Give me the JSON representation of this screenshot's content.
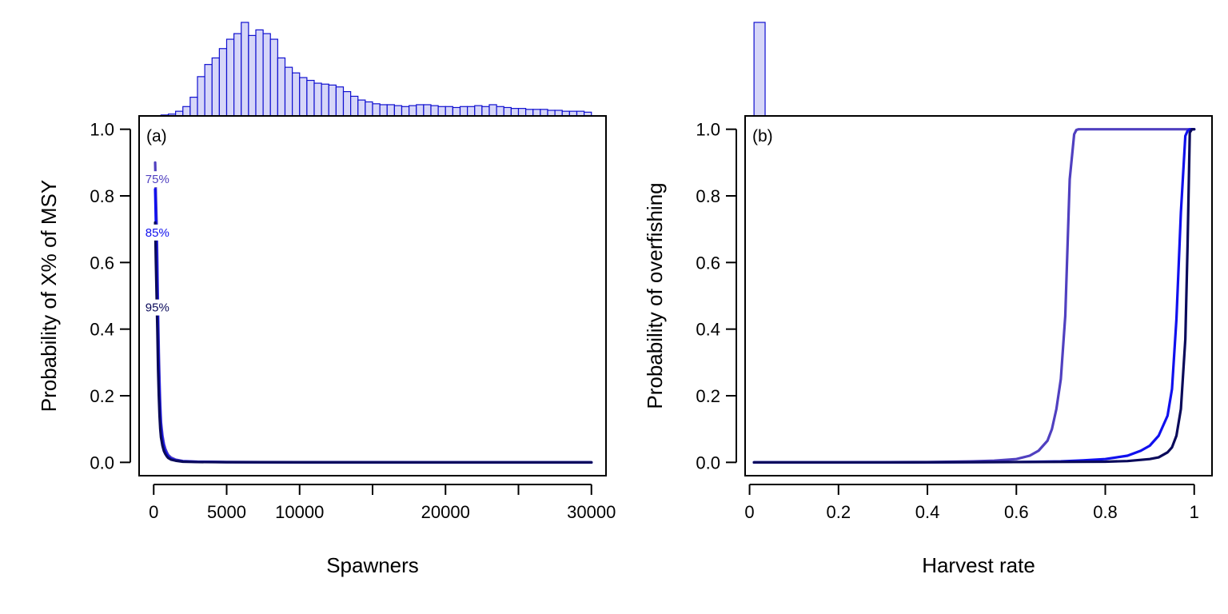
{
  "chart_data": [
    {
      "panel": "(a)",
      "type": "line",
      "xlabel": "Spawners",
      "ylabel": "Probability of X% of MSY",
      "xlim": [
        -1000,
        31000
      ],
      "ylim": [
        -0.04,
        1.04
      ],
      "xticks": [
        0,
        5000,
        10000,
        15000,
        20000,
        25000,
        30000
      ],
      "xtick_labels": [
        "0",
        "5000",
        "10000",
        "",
        "20000",
        "",
        "30000"
      ],
      "yticks": [
        0.0,
        0.2,
        0.4,
        0.6,
        0.8,
        1.0
      ],
      "ytick_labels": [
        "0.0",
        "0.2",
        "0.4",
        "0.6",
        "0.8",
        "1.0"
      ],
      "grid": false,
      "series": [
        {
          "name": "75%",
          "color": "#5040c0",
          "x": [
            100,
            150,
            200,
            250,
            300,
            350,
            400,
            450,
            500,
            600,
            700,
            800,
            900,
            1000,
            1200,
            1500,
            2000,
            3000,
            5000,
            10000,
            20000,
            30000
          ],
          "y": [
            0.9,
            0.8,
            0.72,
            0.6,
            0.45,
            0.33,
            0.24,
            0.17,
            0.12,
            0.08,
            0.055,
            0.04,
            0.03,
            0.022,
            0.014,
            0.008,
            0.004,
            0.002,
            0.001,
            0.0005,
            0.0,
            0.0
          ]
        },
        {
          "name": "85%",
          "color": "#1010ee",
          "x": [
            100,
            150,
            200,
            250,
            300,
            350,
            400,
            450,
            500,
            600,
            700,
            800,
            900,
            1000,
            1200,
            1500,
            2000,
            3000,
            5000,
            10000,
            20000,
            30000
          ],
          "y": [
            0.82,
            0.72,
            0.62,
            0.5,
            0.37,
            0.27,
            0.19,
            0.14,
            0.1,
            0.065,
            0.045,
            0.032,
            0.024,
            0.017,
            0.01,
            0.006,
            0.003,
            0.0015,
            0.0008,
            0.0003,
            0.0,
            0.0
          ]
        },
        {
          "name": "95%",
          "color": "#0a0a5a",
          "x": [
            100,
            150,
            200,
            250,
            300,
            350,
            400,
            450,
            500,
            600,
            700,
            800,
            900,
            1000,
            1200,
            1500,
            2000,
            3000,
            5000,
            10000,
            20000,
            30000
          ],
          "y": [
            0.72,
            0.6,
            0.5,
            0.4,
            0.28,
            0.2,
            0.14,
            0.1,
            0.075,
            0.05,
            0.034,
            0.025,
            0.018,
            0.013,
            0.008,
            0.005,
            0.002,
            0.001,
            0.0005,
            0.0002,
            0.0,
            0.0
          ]
        }
      ],
      "curve_labels": [
        {
          "text": "75%",
          "x": 250,
          "y": 0.85,
          "color": "#5040c0"
        },
        {
          "text": "85%",
          "x": 250,
          "y": 0.69,
          "color": "#1010ee"
        },
        {
          "text": "95%",
          "x": 250,
          "y": 0.465,
          "color": "#0a0a5a"
        }
      ],
      "marginal_histogram": {
        "bin_start": 0,
        "bin_width": 500,
        "relative_heights": [
          0.0,
          0.01,
          0.02,
          0.05,
          0.1,
          0.2,
          0.42,
          0.55,
          0.62,
          0.72,
          0.82,
          0.88,
          1.0,
          0.86,
          0.92,
          0.88,
          0.82,
          0.62,
          0.52,
          0.46,
          0.41,
          0.38,
          0.35,
          0.34,
          0.33,
          0.31,
          0.26,
          0.21,
          0.17,
          0.15,
          0.13,
          0.12,
          0.12,
          0.11,
          0.1,
          0.11,
          0.12,
          0.12,
          0.11,
          0.1,
          0.1,
          0.09,
          0.1,
          0.1,
          0.11,
          0.1,
          0.12,
          0.1,
          0.09,
          0.08,
          0.08,
          0.07,
          0.07,
          0.07,
          0.06,
          0.06,
          0.05,
          0.05,
          0.05,
          0.04
        ],
        "fill": "#d6d6f8",
        "stroke": "#1010d0"
      }
    },
    {
      "panel": "(b)",
      "type": "line",
      "xlabel": "Harvest rate",
      "ylabel": "Probability of overfishing",
      "xlim": [
        -0.01,
        1.04
      ],
      "ylim": [
        -0.04,
        1.04
      ],
      "xticks": [
        0,
        0.2,
        0.4,
        0.6,
        0.8,
        1.0
      ],
      "xtick_labels": [
        "0",
        "0.2",
        "0.4",
        "0.6",
        "0.8",
        "1"
      ],
      "yticks": [
        0.0,
        0.2,
        0.4,
        0.6,
        0.8,
        1.0
      ],
      "ytick_labels": [
        "0.0",
        "0.2",
        "0.4",
        "0.6",
        "0.8",
        "1.0"
      ],
      "grid": false,
      "series": [
        {
          "color": "#5040c0",
          "x": [
            0.01,
            0.2,
            0.4,
            0.5,
            0.55,
            0.6,
            0.63,
            0.65,
            0.67,
            0.68,
            0.69,
            0.7,
            0.71,
            0.72,
            0.73,
            0.735,
            0.74,
            0.75,
            0.8,
            0.9,
            1.0
          ],
          "y": [
            0.0,
            0.0,
            0.001,
            0.003,
            0.005,
            0.01,
            0.02,
            0.035,
            0.065,
            0.1,
            0.16,
            0.25,
            0.44,
            0.85,
            0.985,
            0.998,
            1.0,
            1.0,
            1.0,
            1.0,
            1.0
          ]
        },
        {
          "color": "#1010ee",
          "x": [
            0.01,
            0.3,
            0.6,
            0.7,
            0.75,
            0.8,
            0.85,
            0.88,
            0.9,
            0.92,
            0.94,
            0.95,
            0.96,
            0.97,
            0.98,
            0.985,
            0.99,
            1.0
          ],
          "y": [
            0.0,
            0.0,
            0.001,
            0.003,
            0.006,
            0.01,
            0.02,
            0.035,
            0.05,
            0.08,
            0.14,
            0.22,
            0.43,
            0.75,
            0.98,
            0.995,
            1.0,
            1.0
          ]
        },
        {
          "color": "#0a0a5a",
          "x": [
            0.01,
            0.3,
            0.6,
            0.8,
            0.85,
            0.9,
            0.92,
            0.94,
            0.95,
            0.96,
            0.97,
            0.98,
            0.985,
            0.99,
            0.995,
            1.0
          ],
          "y": [
            0.0,
            0.0,
            0.001,
            0.002,
            0.004,
            0.01,
            0.015,
            0.03,
            0.045,
            0.08,
            0.16,
            0.37,
            0.65,
            0.99,
            1.0,
            1.0
          ]
        }
      ],
      "marginal_histogram": {
        "bin_start": 0.01,
        "bin_width": 0.025,
        "relative_heights": [
          1.0
        ],
        "fill": "#d6d6f8",
        "stroke": "#1010d0"
      }
    }
  ]
}
